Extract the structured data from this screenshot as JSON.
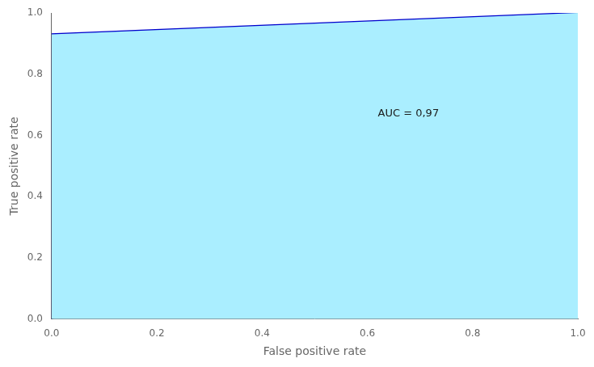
{
  "chart_data": {
    "type": "line",
    "xlabel": "False positive rate",
    "ylabel": "True positive rate",
    "series": [
      {
        "type": "area",
        "color": "#AAEEFF",
        "x": [
          0.0,
          0.0,
          1.0
        ],
        "values": [
          0.0,
          0.93,
          1.0
        ]
      },
      {
        "type": "line",
        "color": "#1a1a1a",
        "x": [
          0.0,
          1.0
        ],
        "values": [
          0.0,
          1.0
        ]
      },
      {
        "type": "line",
        "color": "#0000CC",
        "x": [
          0.0,
          0.0,
          1.0
        ],
        "values": [
          0.0,
          0.93,
          1.0
        ]
      }
    ],
    "annotations": [
      {
        "text": "AUC = 0,97",
        "x": 0.62,
        "y": 0.67,
        "color": "#1a1a1a"
      }
    ],
    "xlim": [
      0.0,
      1.0
    ],
    "ylim": [
      0.0,
      1.0
    ],
    "xticks": [
      {
        "value": 0,
        "label": "0.0"
      },
      0.2,
      0.4,
      0.6,
      0.8,
      {
        "value": 1,
        "label": "1.0"
      }
    ],
    "yticks": [
      {
        "value": 0,
        "label": "0.0"
      },
      0.2,
      0.4,
      0.6,
      0.8,
      {
        "value": 1,
        "label": "1.0"
      }
    ],
    "grid": false
  }
}
